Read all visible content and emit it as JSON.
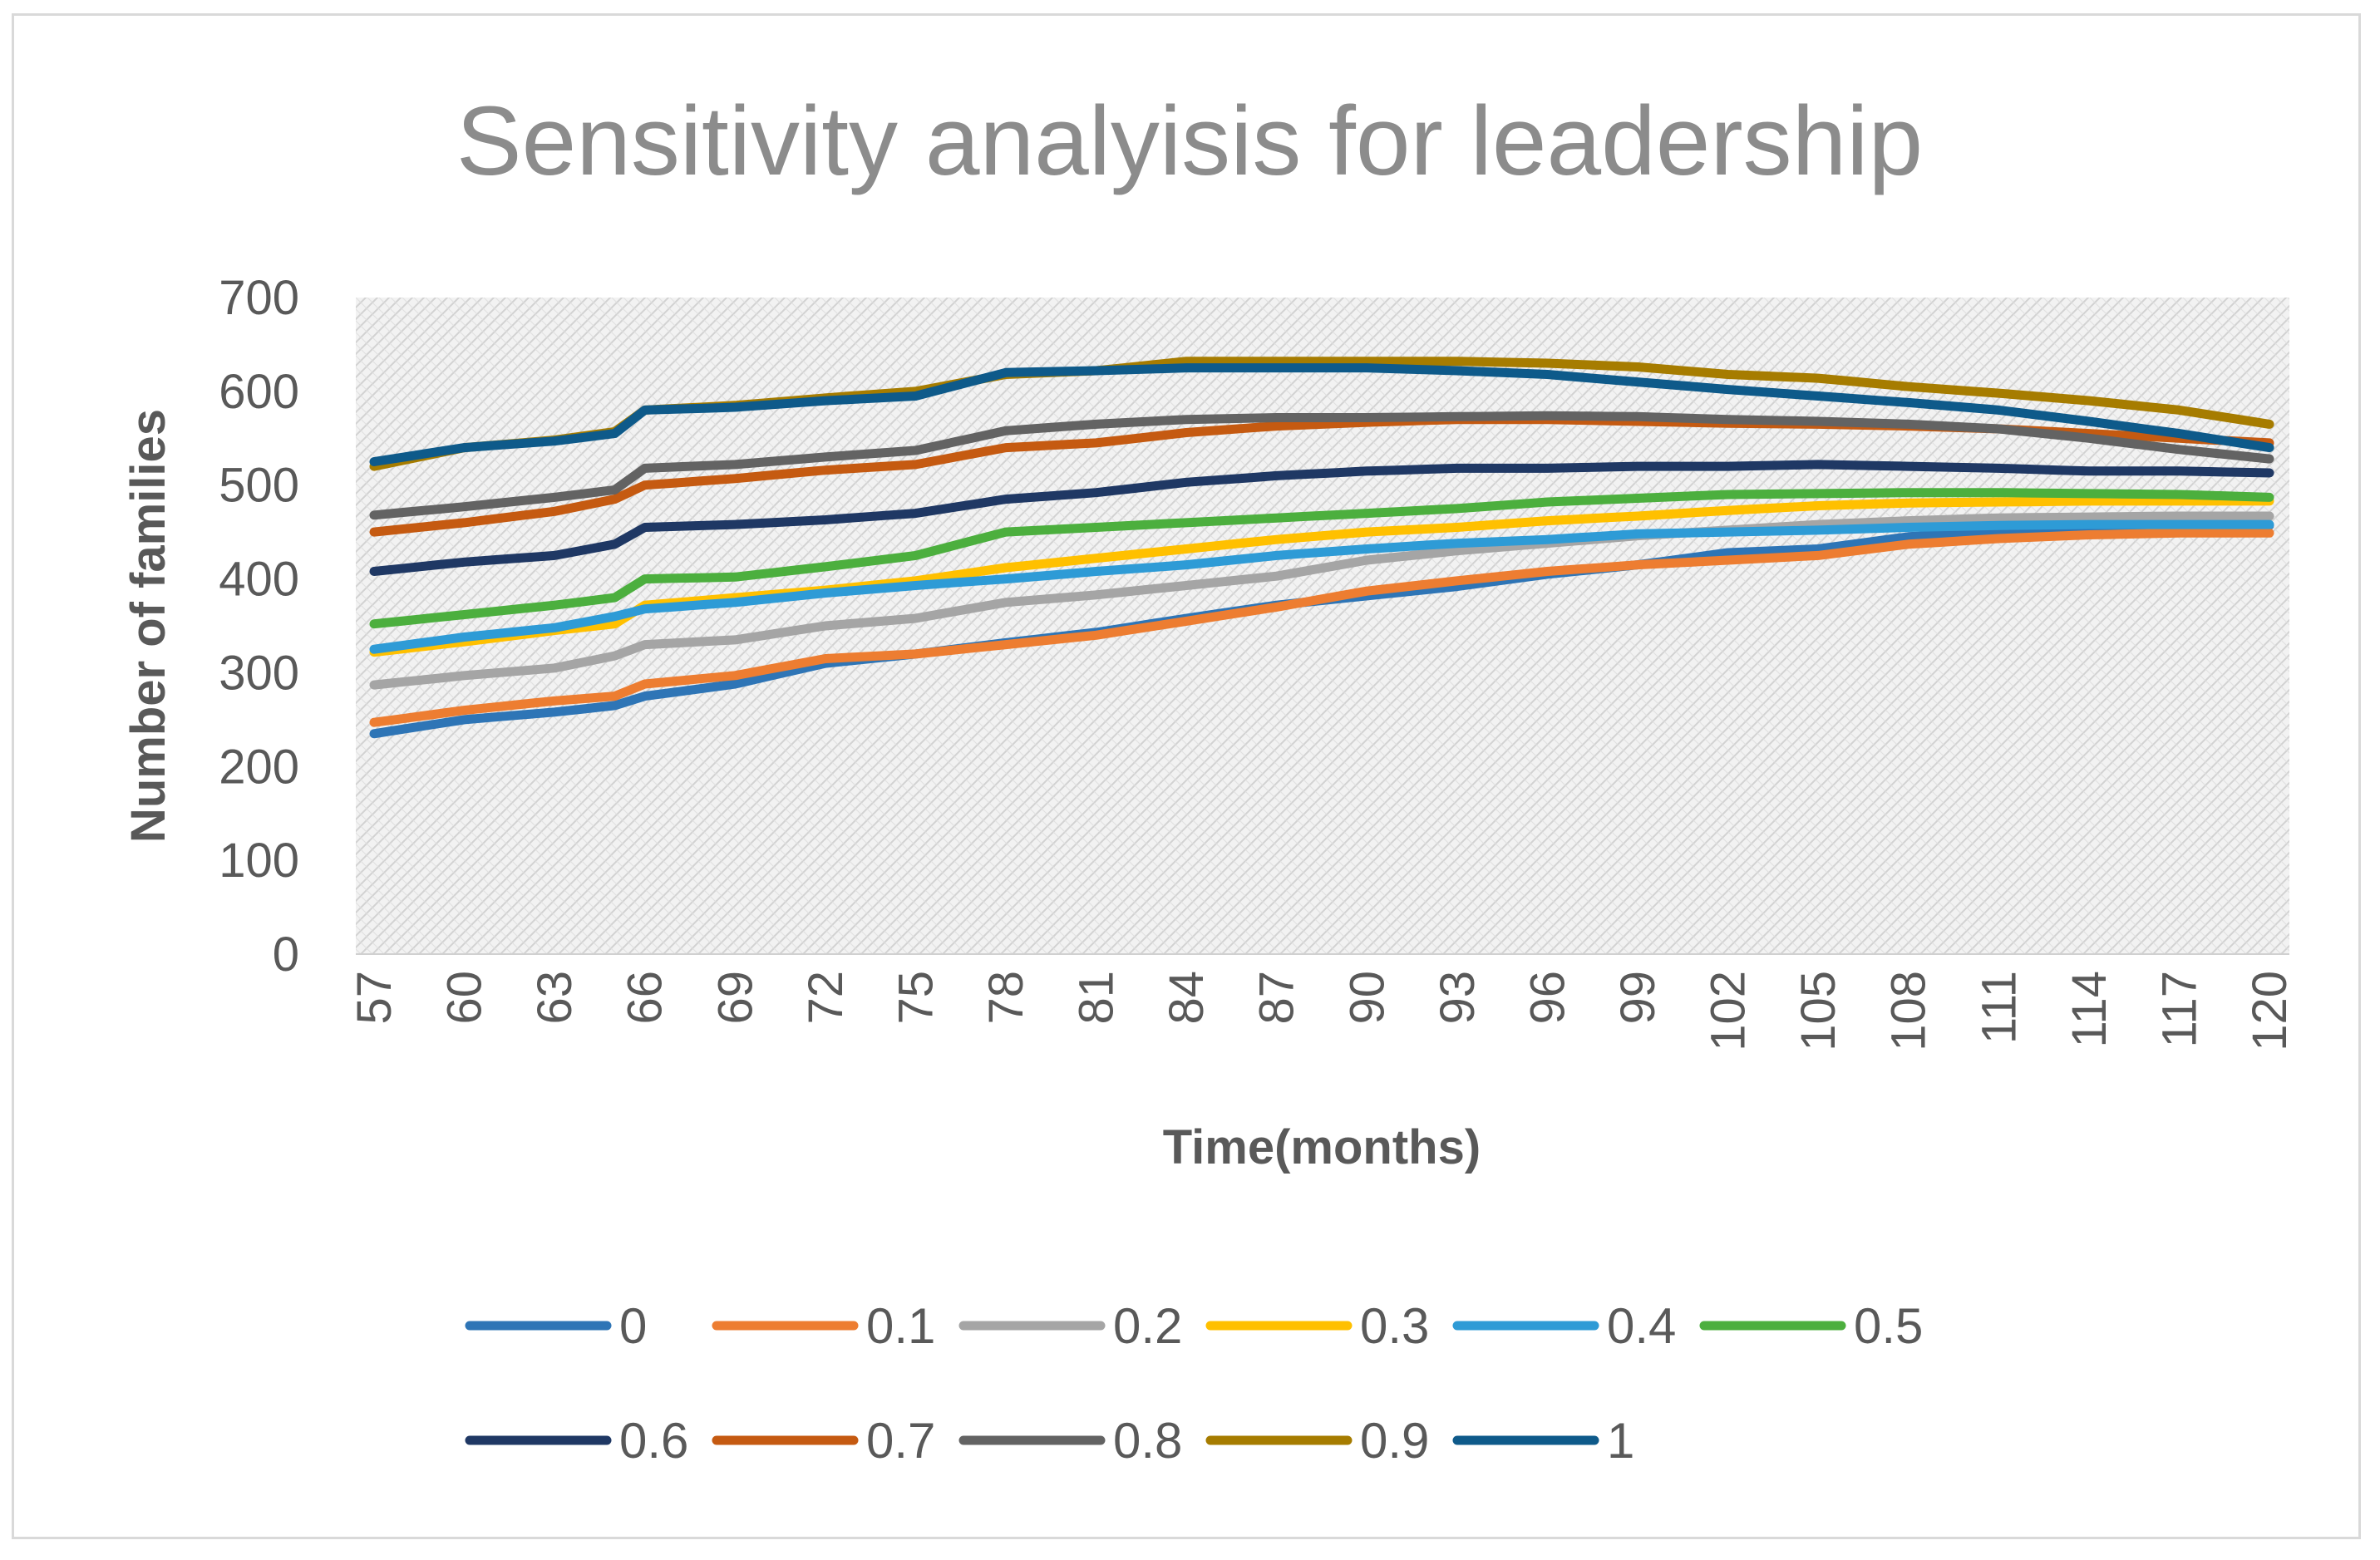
{
  "chart_data": {
    "type": "line",
    "title": "Sensitivity analyisis for leadership",
    "xlabel": "Time(months)",
    "ylabel": "Number of families",
    "x_range": [
      57,
      120
    ],
    "x_tick_labels": [
      "57",
      "60",
      "63",
      "66",
      "69",
      "72",
      "75",
      "78",
      "81",
      "84",
      "87",
      "90",
      "93",
      "96",
      "99",
      "102",
      "105",
      "108",
      "111",
      "114",
      "117",
      "120"
    ],
    "ylim": [
      0,
      700
    ],
    "y_ticks": [
      0,
      100,
      200,
      300,
      400,
      500,
      600,
      700
    ],
    "grid": "patterned plot area",
    "legend_position": "bottom",
    "series": [
      {
        "name": "0",
        "color": "#2e75b6",
        "keypoints": [
          [
            57,
            235
          ],
          [
            60,
            250
          ],
          [
            63,
            258
          ],
          [
            65,
            265
          ],
          [
            66,
            275
          ],
          [
            69,
            288
          ],
          [
            72,
            310
          ],
          [
            75,
            320
          ],
          [
            78,
            332
          ],
          [
            81,
            343
          ],
          [
            84,
            358
          ],
          [
            87,
            372
          ],
          [
            90,
            382
          ],
          [
            93,
            392
          ],
          [
            96,
            405
          ],
          [
            99,
            415
          ],
          [
            102,
            428
          ],
          [
            105,
            432
          ],
          [
            108,
            445
          ],
          [
            111,
            450
          ],
          [
            114,
            453
          ],
          [
            117,
            455
          ],
          [
            120,
            457
          ]
        ]
      },
      {
        "name": "0.1",
        "color": "#ed7d31",
        "keypoints": [
          [
            57,
            247
          ],
          [
            60,
            260
          ],
          [
            63,
            270
          ],
          [
            65,
            275
          ],
          [
            66,
            288
          ],
          [
            69,
            297
          ],
          [
            72,
            315
          ],
          [
            75,
            320
          ],
          [
            78,
            330
          ],
          [
            81,
            340
          ],
          [
            84,
            355
          ],
          [
            87,
            370
          ],
          [
            90,
            387
          ],
          [
            93,
            398
          ],
          [
            96,
            408
          ],
          [
            99,
            415
          ],
          [
            102,
            420
          ],
          [
            105,
            425
          ],
          [
            108,
            437
          ],
          [
            111,
            443
          ],
          [
            114,
            447
          ],
          [
            117,
            449
          ],
          [
            120,
            449
          ]
        ]
      },
      {
        "name": "0.2",
        "color": "#a5a5a5",
        "keypoints": [
          [
            57,
            287
          ],
          [
            60,
            297
          ],
          [
            63,
            305
          ],
          [
            65,
            318
          ],
          [
            66,
            330
          ],
          [
            69,
            335
          ],
          [
            72,
            350
          ],
          [
            75,
            358
          ],
          [
            78,
            375
          ],
          [
            81,
            383
          ],
          [
            84,
            393
          ],
          [
            87,
            403
          ],
          [
            90,
            420
          ],
          [
            93,
            430
          ],
          [
            96,
            438
          ],
          [
            99,
            446
          ],
          [
            102,
            452
          ],
          [
            105,
            458
          ],
          [
            108,
            462
          ],
          [
            111,
            465
          ],
          [
            114,
            466
          ],
          [
            117,
            467
          ],
          [
            120,
            467
          ]
        ]
      },
      {
        "name": "0.3",
        "color": "#ffc000",
        "keypoints": [
          [
            57,
            322
          ],
          [
            60,
            333
          ],
          [
            63,
            345
          ],
          [
            65,
            352
          ],
          [
            66,
            372
          ],
          [
            69,
            380
          ],
          [
            72,
            388
          ],
          [
            75,
            398
          ],
          [
            78,
            412
          ],
          [
            81,
            422
          ],
          [
            84,
            432
          ],
          [
            87,
            442
          ],
          [
            90,
            450
          ],
          [
            93,
            455
          ],
          [
            96,
            462
          ],
          [
            99,
            467
          ],
          [
            102,
            473
          ],
          [
            105,
            478
          ],
          [
            108,
            481
          ],
          [
            111,
            482
          ],
          [
            114,
            483
          ],
          [
            117,
            483
          ],
          [
            120,
            483
          ]
        ]
      },
      {
        "name": "0.4",
        "color": "#2e9bd6",
        "keypoints": [
          [
            57,
            325
          ],
          [
            60,
            338
          ],
          [
            63,
            348
          ],
          [
            65,
            360
          ],
          [
            66,
            368
          ],
          [
            69,
            375
          ],
          [
            72,
            385
          ],
          [
            75,
            393
          ],
          [
            78,
            400
          ],
          [
            81,
            408
          ],
          [
            84,
            415
          ],
          [
            87,
            425
          ],
          [
            90,
            432
          ],
          [
            93,
            438
          ],
          [
            96,
            442
          ],
          [
            99,
            448
          ],
          [
            102,
            450
          ],
          [
            105,
            452
          ],
          [
            108,
            455
          ],
          [
            111,
            457
          ],
          [
            114,
            458
          ],
          [
            117,
            458
          ],
          [
            120,
            458
          ]
        ]
      },
      {
        "name": "0.5",
        "color": "#4caf3e",
        "keypoints": [
          [
            57,
            352
          ],
          [
            60,
            362
          ],
          [
            63,
            372
          ],
          [
            65,
            380
          ],
          [
            66,
            400
          ],
          [
            69,
            402
          ],
          [
            72,
            413
          ],
          [
            75,
            425
          ],
          [
            78,
            450
          ],
          [
            81,
            455
          ],
          [
            84,
            460
          ],
          [
            87,
            465
          ],
          [
            90,
            470
          ],
          [
            93,
            475
          ],
          [
            96,
            482
          ],
          [
            99,
            486
          ],
          [
            102,
            490
          ],
          [
            105,
            491
          ],
          [
            108,
            492
          ],
          [
            111,
            492
          ],
          [
            114,
            491
          ],
          [
            117,
            490
          ],
          [
            120,
            487
          ]
        ]
      },
      {
        "name": "0.6",
        "color": "#1f3864",
        "keypoints": [
          [
            57,
            408
          ],
          [
            60,
            418
          ],
          [
            63,
            425
          ],
          [
            65,
            437
          ],
          [
            66,
            455
          ],
          [
            69,
            458
          ],
          [
            72,
            463
          ],
          [
            75,
            470
          ],
          [
            78,
            485
          ],
          [
            81,
            492
          ],
          [
            84,
            503
          ],
          [
            87,
            510
          ],
          [
            90,
            515
          ],
          [
            93,
            518
          ],
          [
            96,
            518
          ],
          [
            99,
            520
          ],
          [
            102,
            520
          ],
          [
            105,
            522
          ],
          [
            108,
            520
          ],
          [
            111,
            518
          ],
          [
            114,
            515
          ],
          [
            117,
            515
          ],
          [
            120,
            513
          ]
        ]
      },
      {
        "name": "0.7",
        "color": "#c55a11",
        "keypoints": [
          [
            57,
            450
          ],
          [
            60,
            460
          ],
          [
            63,
            472
          ],
          [
            65,
            485
          ],
          [
            66,
            500
          ],
          [
            69,
            507
          ],
          [
            72,
            516
          ],
          [
            75,
            522
          ],
          [
            78,
            540
          ],
          [
            81,
            545
          ],
          [
            84,
            556
          ],
          [
            87,
            563
          ],
          [
            90,
            567
          ],
          [
            93,
            570
          ],
          [
            96,
            570
          ],
          [
            99,
            568
          ],
          [
            102,
            566
          ],
          [
            105,
            565
          ],
          [
            108,
            563
          ],
          [
            111,
            560
          ],
          [
            114,
            555
          ],
          [
            117,
            550
          ],
          [
            120,
            545
          ]
        ]
      },
      {
        "name": "0.8",
        "color": "#636363",
        "keypoints": [
          [
            57,
            468
          ],
          [
            60,
            477
          ],
          [
            63,
            487
          ],
          [
            65,
            495
          ],
          [
            66,
            518
          ],
          [
            69,
            522
          ],
          [
            72,
            530
          ],
          [
            75,
            537
          ],
          [
            78,
            558
          ],
          [
            81,
            565
          ],
          [
            84,
            570
          ],
          [
            87,
            572
          ],
          [
            90,
            572
          ],
          [
            93,
            573
          ],
          [
            96,
            574
          ],
          [
            99,
            573
          ],
          [
            102,
            570
          ],
          [
            105,
            568
          ],
          [
            108,
            565
          ],
          [
            111,
            560
          ],
          [
            114,
            550
          ],
          [
            117,
            538
          ],
          [
            120,
            528
          ]
        ]
      },
      {
        "name": "0.9",
        "color": "#a67c00",
        "keypoints": [
          [
            57,
            520
          ],
          [
            60,
            540
          ],
          [
            63,
            548
          ],
          [
            65,
            557
          ],
          [
            66,
            580
          ],
          [
            69,
            585
          ],
          [
            72,
            593
          ],
          [
            75,
            600
          ],
          [
            78,
            618
          ],
          [
            81,
            622
          ],
          [
            84,
            632
          ],
          [
            87,
            632
          ],
          [
            90,
            632
          ],
          [
            93,
            632
          ],
          [
            96,
            630
          ],
          [
            99,
            626
          ],
          [
            102,
            618
          ],
          [
            105,
            614
          ],
          [
            108,
            605
          ],
          [
            111,
            598
          ],
          [
            114,
            590
          ],
          [
            117,
            580
          ],
          [
            120,
            565
          ]
        ]
      },
      {
        "name": "1",
        "color": "#0e5a8a",
        "keypoints": [
          [
            57,
            525
          ],
          [
            60,
            540
          ],
          [
            63,
            547
          ],
          [
            65,
            555
          ],
          [
            66,
            580
          ],
          [
            69,
            583
          ],
          [
            72,
            590
          ],
          [
            75,
            595
          ],
          [
            78,
            620
          ],
          [
            81,
            622
          ],
          [
            84,
            625
          ],
          [
            87,
            625
          ],
          [
            90,
            625
          ],
          [
            93,
            622
          ],
          [
            96,
            618
          ],
          [
            99,
            610
          ],
          [
            102,
            602
          ],
          [
            105,
            595
          ],
          [
            108,
            588
          ],
          [
            111,
            580
          ],
          [
            114,
            568
          ],
          [
            117,
            555
          ],
          [
            120,
            540
          ]
        ]
      }
    ]
  }
}
